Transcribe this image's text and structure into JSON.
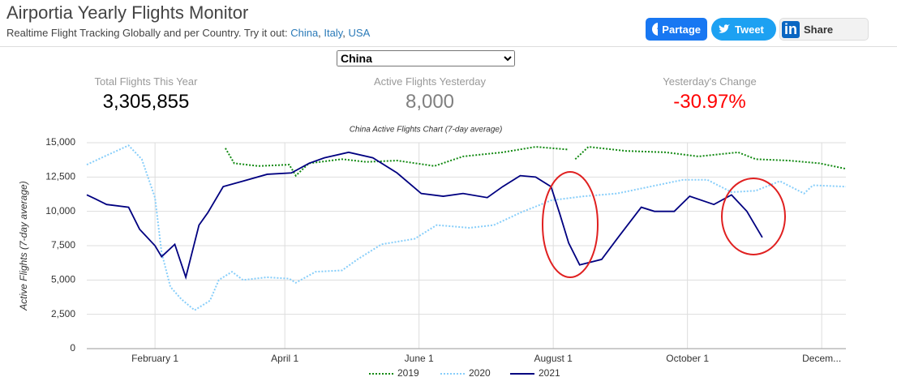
{
  "header": {
    "title": "Airportia Yearly Flights Monitor",
    "subtitle": "Realtime Flight Tracking Globally and per Country. Try it out:",
    "links": [
      "China",
      "Italy",
      "USA"
    ],
    "buttons": [
      "Partage",
      "Tweet",
      "Share"
    ]
  },
  "selector": "China",
  "stats": [
    {
      "label": "Total Flights This Year",
      "value": "3,305,855",
      "color": "#000000"
    },
    {
      "label": "Active Flights Yesterday",
      "value": "8,000",
      "color": "#808080"
    },
    {
      "label": "Yesterday's Change",
      "value": "-30.97%",
      "color": "#ff0000"
    }
  ],
  "chart_data": {
    "type": "line",
    "title": "China Active Flights Chart (7-day average)",
    "y_label": "Active Flights (7-day average)",
    "xlim": [
      1,
      346
    ],
    "ylim": [
      0,
      15000
    ],
    "grid": true,
    "xticks": [
      {
        "value": 32,
        "label": "February 1"
      },
      {
        "value": 91,
        "label": "April 1"
      },
      {
        "value": 152,
        "label": "June 1"
      },
      {
        "value": 213,
        "label": "August 1"
      },
      {
        "value": 274,
        "label": "October 1"
      },
      {
        "value": 335,
        "label": "Decem..."
      }
    ],
    "yticks": [
      0,
      {
        "value": 2500,
        "label": "2,500"
      },
      {
        "value": 5000,
        "label": "5,000"
      },
      {
        "value": 7500,
        "label": "7,500"
      },
      {
        "value": 10000,
        "label": "10,000"
      },
      {
        "value": 12500,
        "label": "12,500"
      },
      {
        "value": 15000,
        "label": "15,000"
      }
    ],
    "series": [
      {
        "name": "2019",
        "color": "#138a13",
        "style": "dotted",
        "x": [
          64,
          68,
          79,
          93,
          96,
          102,
          117,
          128,
          142,
          159,
          172,
          190,
          205,
          220,
          221,
          223,
          229,
          246,
          264,
          279,
          297,
          305,
          320,
          334,
          346
        ],
        "values": [
          14600,
          13500,
          13300,
          13400,
          12600,
          13500,
          13800,
          13600,
          13700,
          13300,
          14000,
          14300,
          14700,
          14500,
          null,
          13800,
          14700,
          14400,
          14300,
          14000,
          14300,
          13800,
          13700,
          13500,
          13100
        ]
      },
      {
        "name": "2020",
        "color": "#87cefa",
        "style": "dotted",
        "x": [
          1,
          9,
          20,
          26,
          32,
          35,
          39,
          44,
          50,
          57,
          61,
          67,
          72,
          83,
          93,
          96,
          105,
          117,
          124,
          135,
          150,
          160,
          175,
          186,
          198,
          212,
          227,
          242,
          257,
          272,
          283,
          294,
          305,
          316,
          327,
          331,
          346
        ],
        "values": [
          13400,
          14000,
          14800,
          13800,
          11000,
          7000,
          4500,
          3600,
          2800,
          3500,
          5000,
          5600,
          5000,
          5200,
          5100,
          4800,
          5600,
          5700,
          6500,
          7600,
          8000,
          9000,
          8800,
          9000,
          9900,
          10800,
          11100,
          11300,
          11800,
          12300,
          12300,
          11400,
          11500,
          12200,
          11300,
          11900,
          11800
        ]
      },
      {
        "name": "2021",
        "color": "#000080",
        "style": "solid",
        "x": [
          1,
          5,
          10,
          20,
          25,
          32,
          35,
          41,
          46,
          52,
          56,
          63,
          72,
          83,
          94,
          102,
          109,
          120,
          131,
          142,
          153,
          163,
          172,
          183,
          190,
          198,
          205,
          212,
          216,
          220,
          225,
          235,
          242,
          253,
          259,
          268,
          275,
          286,
          294,
          301,
          308
        ],
        "values": [
          11200,
          10900,
          10500,
          10300,
          8700,
          7500,
          6700,
          7600,
          5200,
          9000,
          9900,
          11800,
          12200,
          12700,
          12800,
          13500,
          13900,
          14300,
          13900,
          12800,
          11300,
          11100,
          11300,
          11000,
          11800,
          12600,
          12500,
          11800,
          9800,
          7700,
          6100,
          6500,
          8000,
          10300,
          10000,
          10000,
          11100,
          10500,
          11200,
          10000,
          8100
        ]
      }
    ]
  }
}
